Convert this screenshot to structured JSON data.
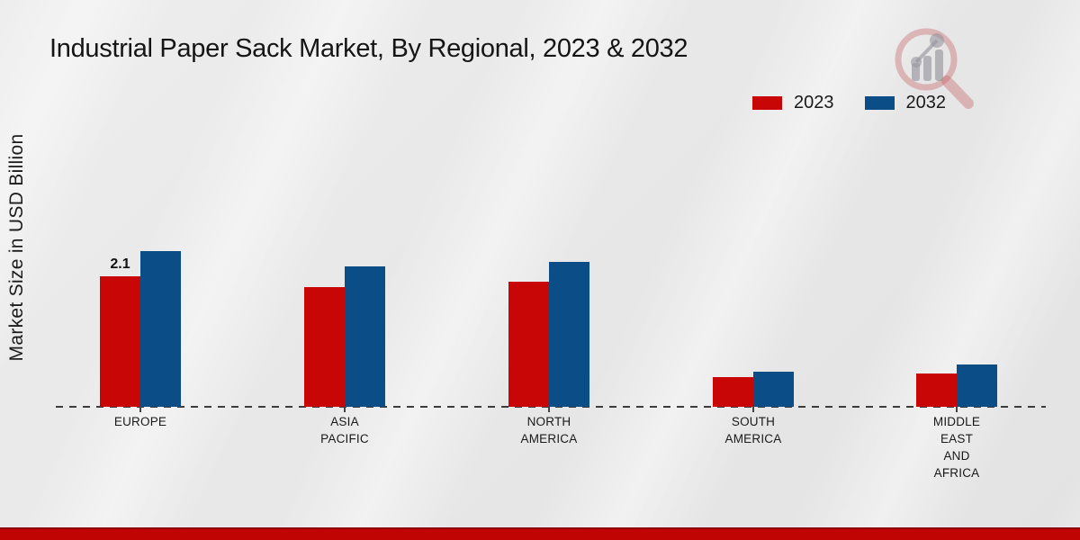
{
  "title": "Industrial Paper Sack Market, By Regional, 2023 & 2032",
  "ylabel": "Market Size in USD Billion",
  "legend": [
    {
      "label": "2023",
      "color": "#c90606"
    },
    {
      "label": "2032",
      "color": "#0b4d86"
    }
  ],
  "footer_color": "#c00404",
  "watermark_icon": "magnifier-bar-chart-logo",
  "chart_data": {
    "type": "bar",
    "title": "Industrial Paper Sack Market, By Regional, 2023 & 2032",
    "ylabel": "Market Size in USD Billion",
    "unit": "USD Billion",
    "grid": false,
    "legend_position": "top-right",
    "ylim": [
      0,
      3
    ],
    "categories": [
      "EUROPE",
      "ASIA PACIFIC",
      "NORTH AMERICA",
      "SOUTH AMERICA",
      "MIDDLE EAST AND AFRICA"
    ],
    "category_display": [
      "EUROPE",
      "ASIA\nPACIFIC",
      "NORTH\nAMERICA",
      "SOUTH\nAMERICA",
      "MIDDLE\nEAST\nAND\nAFRICA"
    ],
    "series": [
      {
        "name": "2023",
        "color": "#c90606",
        "values": [
          2.1,
          1.93,
          2.02,
          0.48,
          0.54
        ]
      },
      {
        "name": "2032",
        "color": "#0b4d86",
        "values": [
          2.5,
          2.26,
          2.33,
          0.56,
          0.68
        ]
      }
    ],
    "data_labels": [
      {
        "series": "2023",
        "category": "EUROPE",
        "value": "2.1"
      }
    ]
  }
}
